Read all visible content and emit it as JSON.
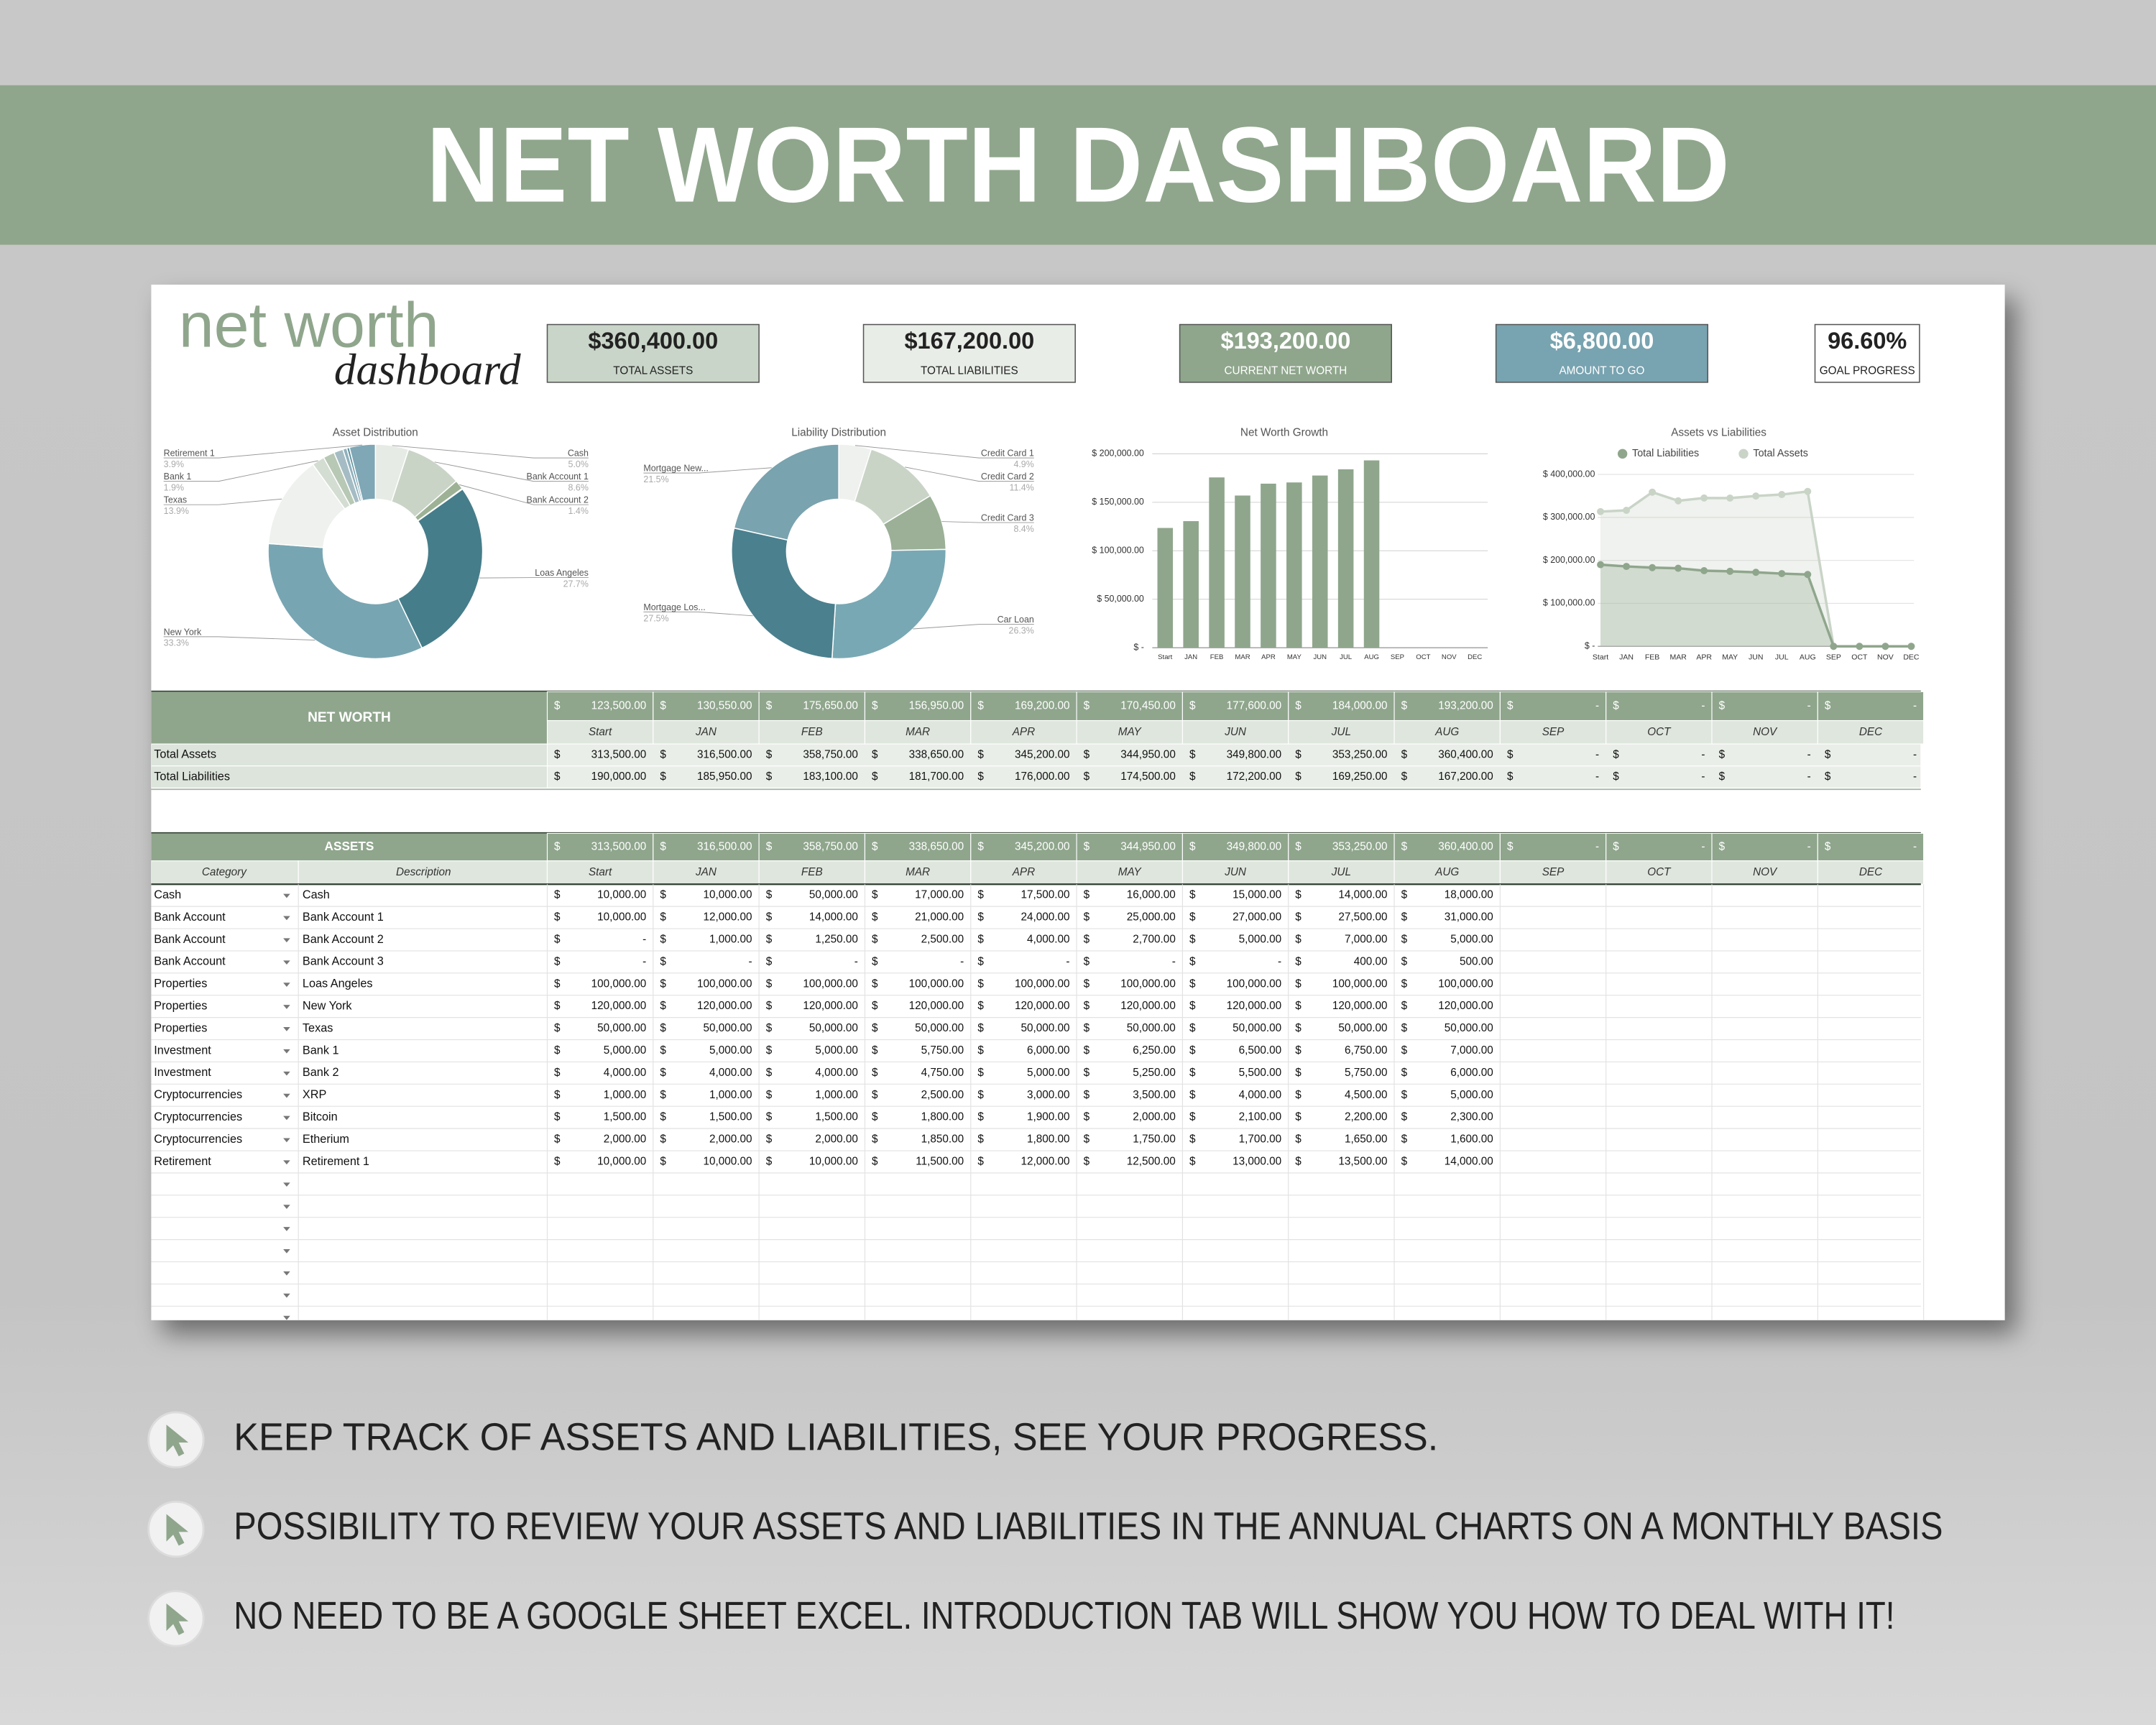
{
  "banner": {
    "title": "NET WORTH DASHBOARD"
  },
  "logo": {
    "line1": "net worth",
    "line2": "dashboard"
  },
  "kpis": [
    {
      "value": "$360,400.00",
      "label": "TOTAL ASSETS"
    },
    {
      "value": "$167,200.00",
      "label": "TOTAL LIABILITIES"
    },
    {
      "value": "$193,200.00",
      "label": "CURRENT NET WORTH"
    },
    {
      "value": "$6,800.00",
      "label": "AMOUNT TO GO"
    },
    {
      "value": "96.60%",
      "label": "GOAL PROGRESS"
    }
  ],
  "chart_data": [
    {
      "type": "pie",
      "title": "Asset Distribution",
      "categories": [
        "Cash",
        "Bank Account 1",
        "Bank Account 2",
        null,
        "Loas Angeles",
        "New York",
        "Texas",
        "Bank 1",
        null,
        null,
        null,
        null,
        "Retirement 1"
      ],
      "values": [
        5.0,
        8.6,
        1.4,
        0.1,
        27.7,
        33.3,
        13.9,
        1.9,
        1.7,
        1.4,
        0.6,
        0.4,
        3.9
      ],
      "value_labels": [
        "5.0%",
        "8.6%",
        "1.4%",
        null,
        "27.7%",
        "33.3%",
        "13.9%",
        "1.9%",
        null,
        null,
        null,
        null,
        "3.9%"
      ],
      "colors": [
        "#e6ebe5",
        "#c9d4c7",
        "#9db295",
        "#7f9a79",
        "#467d8a",
        "#78a5b2",
        "#eef1ed",
        "#d3ddd2",
        "#b7c8b4",
        "#a5bcc4",
        "#8fb1bd",
        "#5e8f9c",
        "#7fa7b6"
      ]
    },
    {
      "type": "pie",
      "title": "Liability Distribution",
      "categories": [
        "Credit Card 1",
        "Credit Card 2",
        "Credit Card 3",
        "Car Loan",
        "Mortgage Los...",
        "Mortgage New..."
      ],
      "values": [
        4.9,
        11.4,
        8.4,
        26.3,
        27.5,
        21.5
      ],
      "value_labels": [
        "4.9%",
        "11.4%",
        "8.4%",
        "26.3%",
        "27.5%",
        "21.5%"
      ],
      "colors": [
        "#eef1ed",
        "#c9d4c7",
        "#9bb096",
        "#78a8b4",
        "#4b808e",
        "#79a3ae"
      ]
    },
    {
      "type": "bar",
      "title": "Net Worth Growth",
      "categories": [
        "Start",
        "JAN",
        "FEB",
        "MAR",
        "APR",
        "MAY",
        "JUN",
        "JUL",
        "AUG",
        "SEP",
        "OCT",
        "NOV",
        "DEC"
      ],
      "values": [
        123500,
        130550,
        175650,
        156950,
        169200,
        170450,
        177600,
        184000,
        193200,
        0,
        0,
        0,
        0
      ],
      "color": "#8fa68c",
      "ylim": [
        0,
        200000
      ],
      "yticks": [
        {
          "value": 0,
          "label": "$ -"
        },
        {
          "value": 50000,
          "label": "$ 50,000.00"
        },
        {
          "value": 100000,
          "label": "$ 100,000.00"
        },
        {
          "value": 150000,
          "label": "$ 150,000.00"
        },
        {
          "value": 200000,
          "label": "$ 200,000.00"
        }
      ],
      "grid": true
    },
    {
      "type": "line",
      "title": "Assets vs Liabilities",
      "categories": [
        "Start",
        "JAN",
        "FEB",
        "MAR",
        "APR",
        "MAY",
        "JUN",
        "JUL",
        "AUG",
        "SEP",
        "OCT",
        "NOV",
        "DEC"
      ],
      "series": [
        {
          "name": "Total Liabilities",
          "color": "#8fa68c",
          "values": [
            190000,
            185950,
            183100,
            181700,
            176000,
            174500,
            172200,
            169250,
            167200,
            0,
            0,
            0,
            0
          ]
        },
        {
          "name": "Total Assets",
          "color": "#c9d4c7",
          "values": [
            313500,
            316500,
            358750,
            338650,
            345200,
            344950,
            349800,
            353250,
            360400,
            0,
            0,
            0,
            0
          ]
        }
      ],
      "ylim": [
        0,
        400000
      ],
      "yticks": [
        {
          "value": 0,
          "label": "$ -"
        },
        {
          "value": 100000,
          "label": "$ 100,000.00"
        },
        {
          "value": 200000,
          "label": "$ 200,000.00"
        },
        {
          "value": 300000,
          "label": "$ 300,000.00"
        },
        {
          "value": 400000,
          "label": "$ 400,000.00"
        }
      ],
      "grid": true,
      "legend": "top"
    }
  ],
  "currency": "$",
  "months": [
    "Start",
    "JAN",
    "FEB",
    "MAR",
    "APR",
    "MAY",
    "JUN",
    "JUL",
    "AUG",
    "SEP",
    "OCT",
    "NOV",
    "DEC"
  ],
  "net_worth_table": {
    "title": "NET WORTH",
    "totals": [
      "123,500.00",
      "130,550.00",
      "175,650.00",
      "156,950.00",
      "169,200.00",
      "170,450.00",
      "177,600.00",
      "184,000.00",
      "193,200.00",
      "-",
      "-",
      "-",
      "-"
    ],
    "rows": [
      {
        "label": "Total Assets",
        "values": [
          "313,500.00",
          "316,500.00",
          "358,750.00",
          "338,650.00",
          "345,200.00",
          "344,950.00",
          "349,800.00",
          "353,250.00",
          "360,400.00",
          "-",
          "-",
          "-",
          "-"
        ]
      },
      {
        "label": "Total Liabilities",
        "values": [
          "190,000.00",
          "185,950.00",
          "183,100.00",
          "181,700.00",
          "176,000.00",
          "174,500.00",
          "172,200.00",
          "169,250.00",
          "167,200.00",
          "-",
          "-",
          "-",
          "-"
        ]
      }
    ]
  },
  "assets_table": {
    "title": "ASSETS",
    "columns": [
      "Category",
      "Description"
    ],
    "totals": [
      "313,500.00",
      "316,500.00",
      "358,750.00",
      "338,650.00",
      "345,200.00",
      "344,950.00",
      "349,800.00",
      "353,250.00",
      "360,400.00",
      "-",
      "-",
      "-",
      "-"
    ],
    "rows": [
      {
        "category": "Cash",
        "description": "Cash",
        "values": [
          "10,000.00",
          "10,000.00",
          "50,000.00",
          "17,000.00",
          "17,500.00",
          "16,000.00",
          "15,000.00",
          "14,000.00",
          "18,000.00"
        ]
      },
      {
        "category": "Bank Account",
        "description": "Bank Account 1",
        "values": [
          "10,000.00",
          "12,000.00",
          "14,000.00",
          "21,000.00",
          "24,000.00",
          "25,000.00",
          "27,000.00",
          "27,500.00",
          "31,000.00"
        ]
      },
      {
        "category": "Bank Account",
        "description": "Bank Account 2",
        "values": [
          "-",
          "1,000.00",
          "1,250.00",
          "2,500.00",
          "4,000.00",
          "2,700.00",
          "5,000.00",
          "7,000.00",
          "5,000.00"
        ]
      },
      {
        "category": "Bank Account",
        "description": "Bank Account 3",
        "values": [
          "-",
          "-",
          "-",
          "-",
          "-",
          "-",
          "-",
          "400.00",
          "500.00"
        ]
      },
      {
        "category": "Properties",
        "description": "Loas Angeles",
        "values": [
          "100,000.00",
          "100,000.00",
          "100,000.00",
          "100,000.00",
          "100,000.00",
          "100,000.00",
          "100,000.00",
          "100,000.00",
          "100,000.00"
        ]
      },
      {
        "category": "Properties",
        "description": "New York",
        "values": [
          "120,000.00",
          "120,000.00",
          "120,000.00",
          "120,000.00",
          "120,000.00",
          "120,000.00",
          "120,000.00",
          "120,000.00",
          "120,000.00"
        ]
      },
      {
        "category": "Properties",
        "description": "Texas",
        "values": [
          "50,000.00",
          "50,000.00",
          "50,000.00",
          "50,000.00",
          "50,000.00",
          "50,000.00",
          "50,000.00",
          "50,000.00",
          "50,000.00"
        ]
      },
      {
        "category": "Investment",
        "description": "Bank 1",
        "values": [
          "5,000.00",
          "5,000.00",
          "5,000.00",
          "5,750.00",
          "6,000.00",
          "6,250.00",
          "6,500.00",
          "6,750.00",
          "7,000.00"
        ]
      },
      {
        "category": "Investment",
        "description": "Bank 2",
        "values": [
          "4,000.00",
          "4,000.00",
          "4,000.00",
          "4,750.00",
          "5,000.00",
          "5,250.00",
          "5,500.00",
          "5,750.00",
          "6,000.00"
        ]
      },
      {
        "category": "Cryptocurrencies",
        "description": "XRP",
        "values": [
          "1,000.00",
          "1,000.00",
          "1,000.00",
          "2,500.00",
          "3,000.00",
          "3,500.00",
          "4,000.00",
          "4,500.00",
          "5,000.00"
        ]
      },
      {
        "category": "Cryptocurrencies",
        "description": "Bitcoin",
        "values": [
          "1,500.00",
          "1,500.00",
          "1,500.00",
          "1,800.00",
          "1,900.00",
          "2,000.00",
          "2,100.00",
          "2,200.00",
          "2,300.00"
        ]
      },
      {
        "category": "Cryptocurrencies",
        "description": "Etherium",
        "values": [
          "2,000.00",
          "2,000.00",
          "2,000.00",
          "1,850.00",
          "1,800.00",
          "1,750.00",
          "1,700.00",
          "1,650.00",
          "1,600.00"
        ]
      },
      {
        "category": "Retirement",
        "description": "Retirement 1",
        "values": [
          "10,000.00",
          "10,000.00",
          "10,000.00",
          "11,500.00",
          "12,000.00",
          "12,500.00",
          "13,000.00",
          "13,500.00",
          "14,000.00"
        ]
      }
    ]
  },
  "bullets": [
    "KEEP TRACK OF ASSETS AND LIABILITIES, SEE YOUR PROGRESS.",
    "POSSIBILITY TO REVIEW YOUR ASSETS AND LIABILITIES IN THE ANNUAL CHARTS ON A MONTHLY BASIS",
    "NO NEED TO BE A GOOGLE SHEET EXCEL. INTRODUCTION TAB WILL SHOW YOU HOW TO DEAL WITH IT!"
  ]
}
